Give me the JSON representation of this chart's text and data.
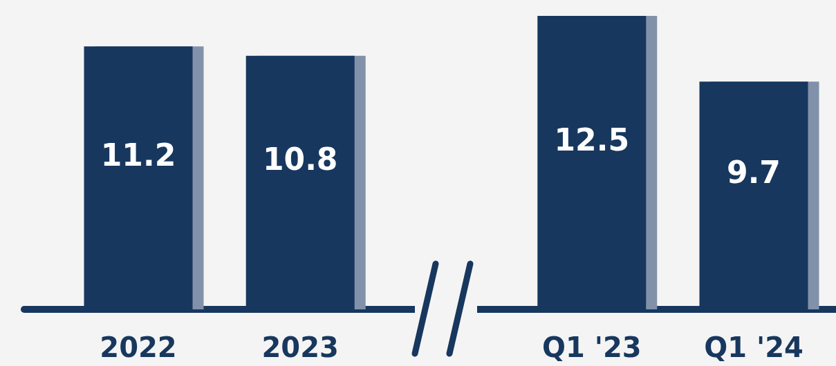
{
  "chart_data": {
    "type": "bar",
    "categories": [
      "2022",
      "2023",
      "Q1 '23",
      "Q1 '24"
    ],
    "values": [
      11.2,
      10.8,
      12.5,
      9.7
    ],
    "color": "#17375e",
    "data_labels": true
  }
}
